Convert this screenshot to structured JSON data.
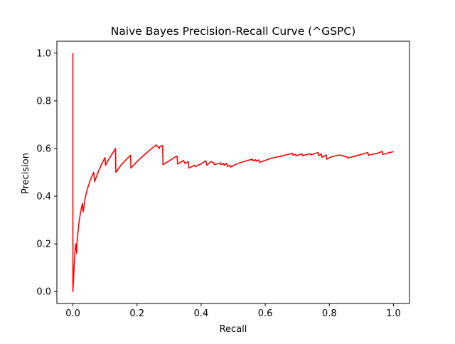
{
  "chart_data": {
    "type": "line",
    "title": "Naive Bayes Precision-Recall Curve (^GSPC)",
    "xlabel": "Recall",
    "ylabel": "Precision",
    "xlim": [
      -0.05,
      1.05
    ],
    "ylim": [
      -0.05,
      1.05
    ],
    "xticks": [
      0.0,
      0.2,
      0.4,
      0.6,
      0.8,
      1.0
    ],
    "xtick_labels": [
      "0.0",
      "0.2",
      "0.4",
      "0.6",
      "0.8",
      "1.0"
    ],
    "yticks": [
      0.0,
      0.2,
      0.4,
      0.6,
      0.8,
      1.0
    ],
    "ytick_labels": [
      "0.0",
      "0.2",
      "0.4",
      "0.6",
      "0.8",
      "1.0"
    ],
    "grid": false,
    "series": [
      {
        "color": "#ff0000",
        "x": [
          0.0,
          0.0,
          0.0,
          0.003,
          0.006,
          0.009,
          0.012,
          0.013,
          0.016,
          0.02,
          0.025,
          0.03,
          0.032,
          0.035,
          0.038,
          0.045,
          0.055,
          0.065,
          0.068,
          0.07,
          0.08,
          0.09,
          0.1,
          0.102,
          0.11,
          0.12,
          0.133,
          0.134,
          0.15,
          0.165,
          0.18,
          0.181,
          0.2,
          0.22,
          0.24,
          0.26,
          0.27,
          0.272,
          0.28,
          0.281,
          0.3,
          0.32,
          0.325,
          0.327,
          0.345,
          0.35,
          0.36,
          0.362,
          0.38,
          0.382,
          0.395,
          0.4,
          0.41,
          0.415,
          0.418,
          0.43,
          0.44,
          0.441,
          0.46,
          0.462,
          0.47,
          0.472,
          0.48,
          0.482,
          0.49,
          0.492,
          0.5,
          0.502,
          0.52,
          0.54,
          0.56,
          0.562,
          0.57,
          0.572,
          0.58,
          0.582,
          0.59,
          0.6,
          0.62,
          0.65,
          0.685,
          0.687,
          0.695,
          0.697,
          0.715,
          0.717,
          0.74,
          0.742,
          0.765,
          0.767,
          0.775,
          0.777,
          0.79,
          0.792,
          0.8,
          0.802,
          0.83,
          0.855,
          0.857,
          0.88,
          0.92,
          0.922,
          0.95,
          0.965,
          0.967,
          0.98,
          1.0
        ],
        "y": [
          1.0,
          0.5,
          0.0,
          0.08,
          0.16,
          0.2,
          0.16,
          0.21,
          0.25,
          0.3,
          0.34,
          0.37,
          0.335,
          0.36,
          0.39,
          0.43,
          0.47,
          0.5,
          0.46,
          0.47,
          0.505,
          0.535,
          0.562,
          0.53,
          0.55,
          0.572,
          0.6,
          0.5,
          0.53,
          0.552,
          0.572,
          0.518,
          0.545,
          0.57,
          0.594,
          0.615,
          0.6,
          0.61,
          0.612,
          0.532,
          0.548,
          0.565,
          0.568,
          0.535,
          0.55,
          0.537,
          0.545,
          0.518,
          0.53,
          0.524,
          0.533,
          0.535,
          0.545,
          0.548,
          0.53,
          0.545,
          0.54,
          0.532,
          0.54,
          0.532,
          0.537,
          0.53,
          0.538,
          0.525,
          0.53,
          0.522,
          0.528,
          0.53,
          0.54,
          0.548,
          0.555,
          0.548,
          0.553,
          0.547,
          0.552,
          0.542,
          0.545,
          0.55,
          0.56,
          0.568,
          0.58,
          0.572,
          0.576,
          0.57,
          0.577,
          0.57,
          0.578,
          0.573,
          0.583,
          0.57,
          0.577,
          0.563,
          0.573,
          0.555,
          0.56,
          0.563,
          0.573,
          0.565,
          0.56,
          0.568,
          0.583,
          0.572,
          0.58,
          0.588,
          0.575,
          0.58,
          0.587
        ]
      }
    ]
  }
}
